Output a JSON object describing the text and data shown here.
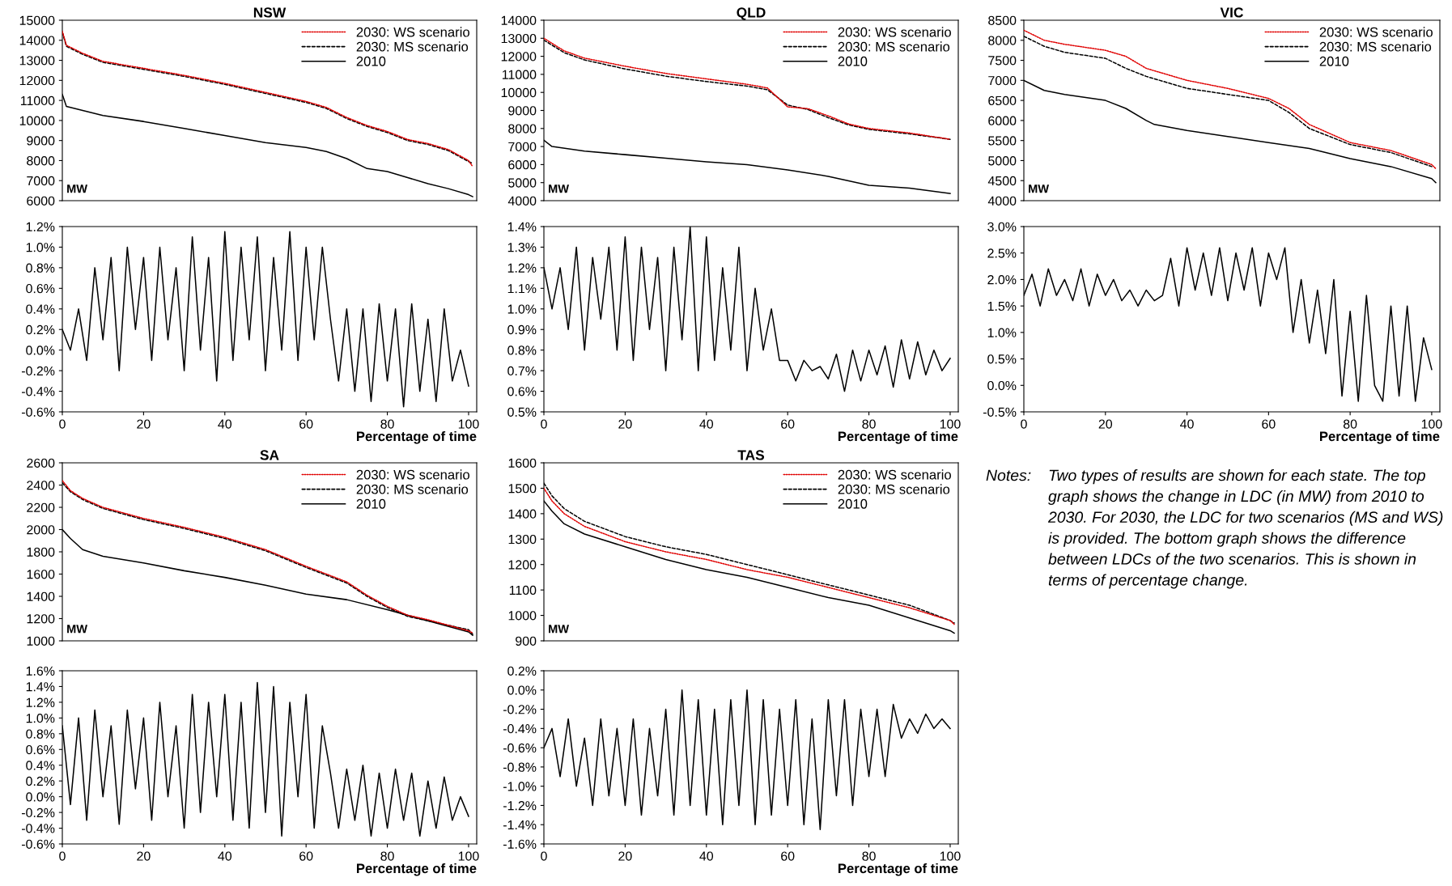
{
  "chart_data": [
    {
      "type": "line",
      "title": "NSW",
      "xlim": [
        0,
        102
      ],
      "ylim": [
        6000,
        15000
      ],
      "yticks": [
        6000,
        7000,
        8000,
        9000,
        10000,
        11000,
        12000,
        13000,
        14000,
        15000
      ],
      "tick_labels": "y",
      "legend": "top right",
      "annotations": [
        "MW"
      ],
      "series": [
        {
          "name": "2030: WS scenario",
          "color": "#e00000",
          "line_style": "dotted",
          "x": [
            0,
            1,
            5,
            10,
            20,
            30,
            40,
            50,
            60,
            65,
            70,
            75,
            80,
            85,
            90,
            95,
            100,
            101
          ],
          "values": [
            14450,
            13750,
            13350,
            12950,
            12600,
            12250,
            11850,
            11400,
            10950,
            10650,
            10150,
            9750,
            9450,
            9050,
            8850,
            8550,
            8000,
            7700
          ]
        },
        {
          "name": "2030: MS scenario",
          "color": "#000000",
          "line_style": "dashed",
          "x": [
            0,
            1,
            5,
            10,
            20,
            30,
            40,
            50,
            60,
            65,
            70,
            75,
            80,
            85,
            90,
            95,
            100,
            101
          ],
          "values": [
            14400,
            13700,
            13300,
            12900,
            12550,
            12200,
            11800,
            11350,
            10900,
            10600,
            10100,
            9700,
            9400,
            9000,
            8800,
            8500,
            7950,
            7850
          ]
        },
        {
          "name": "2010",
          "color": "#000000",
          "line_style": "solid",
          "x": [
            0,
            0.5,
            1,
            5,
            10,
            20,
            30,
            40,
            50,
            60,
            65,
            70,
            75,
            80,
            85,
            90,
            95,
            100,
            101
          ],
          "values": [
            11300,
            11000,
            10700,
            10500,
            10250,
            9950,
            9600,
            9250,
            8900,
            8650,
            8450,
            8100,
            7600,
            7450,
            7150,
            6850,
            6600,
            6300,
            6200
          ]
        }
      ]
    },
    {
      "type": "line",
      "xlabel": "Percentage of time",
      "xlim": [
        0,
        102
      ],
      "xticks": [
        0,
        20,
        40,
        60,
        80,
        100
      ],
      "ylim": [
        -0.6,
        1.2
      ],
      "yticks": [
        {
          "value": -0.6,
          "label": "-0.6%"
        },
        {
          "value": -0.4,
          "label": "-0.4%"
        },
        {
          "value": -0.2,
          "label": "-0.2%"
        },
        {
          "value": 0.0,
          "label": "0.0%"
        },
        {
          "value": 0.2,
          "label": "0.2%"
        },
        {
          "value": 0.4,
          "label": "0.4%"
        },
        {
          "value": 0.6,
          "label": "0.6%"
        },
        {
          "value": 0.8,
          "label": "0.8%"
        },
        {
          "value": 1.0,
          "label": "1.0%"
        },
        {
          "value": 1.2,
          "label": "1.2%"
        }
      ],
      "x": [
        0,
        2,
        4,
        6,
        8,
        10,
        12,
        14,
        16,
        18,
        20,
        22,
        24,
        26,
        28,
        30,
        32,
        34,
        36,
        38,
        40,
        42,
        44,
        46,
        48,
        50,
        52,
        54,
        56,
        58,
        60,
        62,
        64,
        66,
        68,
        70,
        72,
        74,
        76,
        78,
        80,
        82,
        84,
        86,
        88,
        90,
        92,
        94,
        96,
        98,
        100
      ],
      "series": [
        {
          "color": "#000000",
          "values": [
            0.2,
            0.0,
            0.4,
            -0.1,
            0.8,
            0.1,
            0.9,
            -0.2,
            1.0,
            0.2,
            0.9,
            -0.1,
            1.0,
            0.1,
            0.8,
            -0.2,
            1.1,
            0.0,
            0.9,
            -0.3,
            1.15,
            -0.1,
            1.0,
            0.1,
            1.1,
            -0.2,
            0.9,
            0.0,
            1.15,
            -0.1,
            1.0,
            0.1,
            1.0,
            0.3,
            -0.3,
            0.4,
            -0.4,
            0.4,
            -0.5,
            0.45,
            -0.3,
            0.4,
            -0.55,
            0.45,
            -0.4,
            0.3,
            -0.5,
            0.4,
            -0.3,
            0.0,
            -0.35
          ]
        }
      ]
    },
    {
      "type": "line",
      "title": "QLD",
      "xlim": [
        0,
        102
      ],
      "ylim": [
        4000,
        14000
      ],
      "yticks": [
        4000,
        5000,
        6000,
        7000,
        8000,
        9000,
        10000,
        11000,
        12000,
        13000,
        14000
      ],
      "tick_labels": "y",
      "legend": "top right",
      "annotations": [
        "MW"
      ],
      "series": [
        {
          "name": "2030: WS scenario",
          "color": "#e00000",
          "line_style": "dotted",
          "x": [
            0,
            5,
            10,
            20,
            30,
            40,
            50,
            55,
            60,
            65,
            70,
            75,
            80,
            90,
            100
          ],
          "values": [
            13000,
            12300,
            11900,
            11450,
            11050,
            10750,
            10450,
            10250,
            9200,
            9100,
            8700,
            8250,
            8000,
            7750,
            7400
          ]
        },
        {
          "name": "2030: MS scenario",
          "color": "#000000",
          "line_style": "dashed",
          "x": [
            0,
            5,
            10,
            20,
            30,
            40,
            50,
            55,
            60,
            65,
            70,
            75,
            80,
            90,
            100
          ],
          "values": [
            12900,
            12200,
            11800,
            11300,
            10900,
            10600,
            10350,
            10150,
            9300,
            9050,
            8600,
            8200,
            7950,
            7700,
            7400
          ]
        },
        {
          "name": "2010",
          "color": "#000000",
          "line_style": "solid",
          "x": [
            0,
            2,
            10,
            20,
            30,
            40,
            50,
            60,
            70,
            75,
            80,
            90,
            100
          ],
          "values": [
            7350,
            7000,
            6750,
            6550,
            6350,
            6150,
            6000,
            5700,
            5350,
            5100,
            4850,
            4700,
            4400
          ]
        }
      ]
    },
    {
      "type": "line",
      "xlabel": "Percentage of time",
      "xlim": [
        0,
        102
      ],
      "xticks": [
        0,
        20,
        40,
        60,
        80,
        100
      ],
      "ylim": [
        0.5,
        1.4
      ],
      "yticks": [
        {
          "value": 0.5,
          "label": "0.5%"
        },
        {
          "value": 0.6,
          "label": "0.6%"
        },
        {
          "value": 0.7,
          "label": "0.7%"
        },
        {
          "value": 0.8,
          "label": "0.8%"
        },
        {
          "value": 0.9,
          "label": "0.9%"
        },
        {
          "value": 1.0,
          "label": "1.0%"
        },
        {
          "value": 1.1,
          "label": "1.1%"
        },
        {
          "value": 1.2,
          "label": "1.2%"
        },
        {
          "value": 1.3,
          "label": "1.3%"
        },
        {
          "value": 1.4,
          "label": "1.4%"
        }
      ],
      "x": [
        0,
        2,
        4,
        6,
        8,
        10,
        12,
        14,
        16,
        18,
        20,
        22,
        24,
        26,
        28,
        30,
        32,
        34,
        36,
        38,
        40,
        42,
        44,
        46,
        48,
        50,
        52,
        54,
        56,
        58,
        60,
        62,
        64,
        66,
        68,
        70,
        72,
        74,
        76,
        78,
        80,
        82,
        84,
        86,
        88,
        90,
        92,
        94,
        96,
        98,
        100
      ],
      "series": [
        {
          "color": "#000000",
          "values": [
            1.2,
            1.0,
            1.2,
            0.9,
            1.3,
            0.8,
            1.25,
            0.95,
            1.3,
            0.8,
            1.35,
            0.75,
            1.3,
            0.9,
            1.25,
            0.7,
            1.3,
            0.85,
            1.4,
            0.7,
            1.35,
            0.75,
            1.2,
            0.8,
            1.3,
            0.7,
            1.1,
            0.8,
            1.0,
            0.75,
            0.75,
            0.65,
            0.75,
            0.7,
            0.72,
            0.66,
            0.78,
            0.6,
            0.8,
            0.65,
            0.8,
            0.68,
            0.82,
            0.62,
            0.85,
            0.66,
            0.84,
            0.68,
            0.8,
            0.7,
            0.76
          ]
        }
      ]
    },
    {
      "type": "line",
      "title": "VIC",
      "xlim": [
        0,
        102
      ],
      "ylim": [
        4000,
        8500
      ],
      "yticks": [
        4000,
        4500,
        5000,
        5500,
        6000,
        6500,
        7000,
        7500,
        8000,
        8500
      ],
      "tick_labels": "y",
      "legend": "top right",
      "annotations": [
        "MW"
      ],
      "series": [
        {
          "name": "2030: WS scenario",
          "color": "#e00000",
          "line_style": "dotted",
          "x": [
            0,
            5,
            10,
            20,
            25,
            30,
            40,
            50,
            60,
            65,
            70,
            80,
            90,
            100,
            101
          ],
          "values": [
            8250,
            8000,
            7900,
            7750,
            7600,
            7300,
            7000,
            6800,
            6550,
            6300,
            5900,
            5450,
            5250,
            4900,
            4800
          ]
        },
        {
          "name": "2030: MS scenario",
          "color": "#000000",
          "line_style": "dashed",
          "x": [
            0,
            5,
            10,
            20,
            25,
            30,
            40,
            50,
            60,
            65,
            70,
            80,
            90,
            100
          ],
          "values": [
            8100,
            7850,
            7700,
            7550,
            7300,
            7100,
            6800,
            6650,
            6500,
            6200,
            5800,
            5400,
            5200,
            4850
          ]
        },
        {
          "name": "2010",
          "color": "#000000",
          "line_style": "solid",
          "x": [
            0,
            5,
            10,
            20,
            25,
            30,
            32,
            40,
            50,
            60,
            70,
            80,
            90,
            100,
            101
          ],
          "values": [
            7000,
            6750,
            6650,
            6500,
            6300,
            6000,
            5900,
            5750,
            5600,
            5450,
            5300,
            5050,
            4850,
            4550,
            4450
          ]
        }
      ]
    },
    {
      "type": "line",
      "xlabel": "Percentage of time",
      "xlim": [
        0,
        102
      ],
      "xticks": [
        0,
        20,
        40,
        60,
        80,
        100
      ],
      "ylim": [
        -0.5,
        3.0
      ],
      "yticks": [
        {
          "value": -0.5,
          "label": "-0.5%"
        },
        {
          "value": 0.0,
          "label": "0.0%"
        },
        {
          "value": 0.5,
          "label": "0.5%"
        },
        {
          "value": 1.0,
          "label": "1.0%"
        },
        {
          "value": 1.5,
          "label": "1.5%"
        },
        {
          "value": 2.0,
          "label": "2.0%"
        },
        {
          "value": 2.5,
          "label": "2.5%"
        },
        {
          "value": 3.0,
          "label": "3.0%"
        }
      ],
      "x": [
        0,
        2,
        4,
        6,
        8,
        10,
        12,
        14,
        16,
        18,
        20,
        22,
        24,
        26,
        28,
        30,
        32,
        34,
        36,
        38,
        40,
        42,
        44,
        46,
        48,
        50,
        52,
        54,
        56,
        58,
        60,
        62,
        64,
        66,
        68,
        70,
        72,
        74,
        76,
        78,
        80,
        82,
        84,
        86,
        88,
        90,
        92,
        94,
        96,
        98,
        100
      ],
      "series": [
        {
          "color": "#000000",
          "values": [
            1.7,
            2.1,
            1.5,
            2.2,
            1.7,
            2.0,
            1.6,
            2.2,
            1.5,
            2.1,
            1.7,
            2.0,
            1.6,
            1.8,
            1.5,
            1.8,
            1.6,
            1.7,
            2.4,
            1.5,
            2.6,
            1.8,
            2.5,
            1.7,
            2.6,
            1.6,
            2.5,
            1.8,
            2.6,
            1.5,
            2.5,
            2.0,
            2.6,
            1.0,
            2.0,
            0.8,
            1.8,
            0.6,
            2.0,
            -0.2,
            1.4,
            -0.3,
            1.7,
            0.0,
            -0.3,
            1.5,
            -0.2,
            1.5,
            -0.3,
            0.9,
            0.3
          ]
        }
      ]
    },
    {
      "type": "line",
      "title": "SA",
      "xlim": [
        0,
        102
      ],
      "ylim": [
        1000,
        2600
      ],
      "yticks": [
        1000,
        1200,
        1400,
        1600,
        1800,
        2000,
        2200,
        2400,
        2600
      ],
      "tick_labels": "y",
      "legend": "top right",
      "annotations": [
        "MW"
      ],
      "series": [
        {
          "name": "2030: WS scenario",
          "color": "#e00000",
          "line_style": "dotted",
          "x": [
            0,
            2,
            5,
            10,
            20,
            30,
            40,
            50,
            60,
            70,
            75,
            80,
            85,
            90,
            100,
            101
          ],
          "values": [
            2440,
            2350,
            2280,
            2200,
            2100,
            2020,
            1930,
            1820,
            1670,
            1530,
            1410,
            1310,
            1230,
            1190,
            1090,
            1070
          ]
        },
        {
          "name": "2030: MS scenario",
          "color": "#000000",
          "line_style": "dashed",
          "x": [
            0,
            2,
            5,
            10,
            20,
            30,
            40,
            50,
            60,
            70,
            75,
            80,
            85,
            90,
            100,
            101
          ],
          "values": [
            2420,
            2340,
            2270,
            2190,
            2090,
            2010,
            1920,
            1810,
            1660,
            1520,
            1400,
            1300,
            1220,
            1180,
            1100,
            1060
          ]
        },
        {
          "name": "2010",
          "color": "#000000",
          "line_style": "solid",
          "x": [
            0,
            2,
            5,
            10,
            20,
            30,
            40,
            50,
            60,
            70,
            80,
            90,
            100,
            101
          ],
          "values": [
            2000,
            1920,
            1820,
            1760,
            1700,
            1630,
            1570,
            1500,
            1420,
            1370,
            1280,
            1180,
            1080,
            1050
          ]
        }
      ]
    },
    {
      "type": "line",
      "xlabel": "Percentage of time",
      "xlim": [
        0,
        102
      ],
      "xticks": [
        0,
        20,
        40,
        60,
        80,
        100
      ],
      "ylim": [
        -0.6,
        1.6
      ],
      "yticks": [
        {
          "value": -0.6,
          "label": "-0.6%"
        },
        {
          "value": -0.4,
          "label": "-0.4%"
        },
        {
          "value": -0.2,
          "label": "-0.2%"
        },
        {
          "value": 0.0,
          "label": "0.0%"
        },
        {
          "value": 0.2,
          "label": "0.2%"
        },
        {
          "value": 0.4,
          "label": "0.4%"
        },
        {
          "value": 0.6,
          "label": "0.6%"
        },
        {
          "value": 0.8,
          "label": "0.8%"
        },
        {
          "value": 1.0,
          "label": "1.0%"
        },
        {
          "value": 1.2,
          "label": "1.2%"
        },
        {
          "value": 1.4,
          "label": "1.4%"
        },
        {
          "value": 1.6,
          "label": "1.6%"
        }
      ],
      "x": [
        0,
        2,
        4,
        6,
        8,
        10,
        12,
        14,
        16,
        18,
        20,
        22,
        24,
        26,
        28,
        30,
        32,
        34,
        36,
        38,
        40,
        42,
        44,
        46,
        48,
        50,
        52,
        54,
        56,
        58,
        60,
        62,
        64,
        66,
        68,
        70,
        72,
        74,
        76,
        78,
        80,
        82,
        84,
        86,
        88,
        90,
        92,
        94,
        96,
        98,
        100
      ],
      "series": [
        {
          "color": "#000000",
          "values": [
            0.9,
            -0.1,
            1.0,
            -0.3,
            1.1,
            0.0,
            0.9,
            -0.35,
            1.1,
            0.1,
            1.0,
            -0.3,
            1.2,
            0.0,
            0.9,
            -0.4,
            1.3,
            -0.2,
            1.2,
            0.0,
            1.3,
            -0.3,
            1.2,
            -0.4,
            1.45,
            -0.2,
            1.4,
            -0.5,
            1.2,
            0.0,
            1.3,
            -0.4,
            0.9,
            0.3,
            -0.4,
            0.35,
            -0.3,
            0.4,
            -0.5,
            0.3,
            -0.4,
            0.35,
            -0.3,
            0.3,
            -0.5,
            0.2,
            -0.4,
            0.25,
            -0.3,
            0.0,
            -0.25
          ]
        }
      ]
    },
    {
      "type": "line",
      "title": "TAS",
      "xlim": [
        0,
        102
      ],
      "ylim": [
        900,
        1600
      ],
      "yticks": [
        900,
        1000,
        1100,
        1200,
        1300,
        1400,
        1500,
        1600
      ],
      "tick_labels": "y",
      "legend": "top right",
      "annotations": [
        "MW"
      ],
      "series": [
        {
          "name": "2030: WS scenario",
          "color": "#e00000",
          "line_style": "dotted",
          "x": [
            0,
            2,
            5,
            10,
            20,
            30,
            40,
            50,
            60,
            70,
            80,
            90,
            100,
            101
          ],
          "values": [
            1500,
            1450,
            1400,
            1350,
            1290,
            1250,
            1220,
            1180,
            1150,
            1110,
            1070,
            1030,
            980,
            965
          ]
        },
        {
          "name": "2030: MS scenario",
          "color": "#000000",
          "line_style": "dashed",
          "x": [
            0,
            2,
            5,
            10,
            20,
            30,
            40,
            50,
            60,
            70,
            80,
            90,
            100,
            101
          ],
          "values": [
            1520,
            1470,
            1420,
            1370,
            1310,
            1270,
            1240,
            1200,
            1160,
            1120,
            1080,
            1040,
            980,
            970
          ]
        },
        {
          "name": "2010",
          "color": "#000000",
          "line_style": "solid",
          "x": [
            0,
            2,
            5,
            10,
            20,
            30,
            40,
            50,
            60,
            70,
            80,
            90,
            100,
            101
          ],
          "values": [
            1450,
            1410,
            1360,
            1320,
            1270,
            1220,
            1180,
            1150,
            1110,
            1070,
            1040,
            990,
            940,
            930
          ]
        }
      ]
    },
    {
      "type": "line",
      "xlabel": "Percentage of time",
      "xlim": [
        0,
        102
      ],
      "xticks": [
        0,
        20,
        40,
        60,
        80,
        100
      ],
      "ylim": [
        -1.6,
        0.2
      ],
      "yticks": [
        {
          "value": -1.6,
          "label": "-1.6%"
        },
        {
          "value": -1.4,
          "label": "-1.4%"
        },
        {
          "value": -1.2,
          "label": "-1.2%"
        },
        {
          "value": -1.0,
          "label": "-1.0%"
        },
        {
          "value": -0.8,
          "label": "-0.8%"
        },
        {
          "value": -0.6,
          "label": "-0.6%"
        },
        {
          "value": -0.4,
          "label": "-0.4%"
        },
        {
          "value": -0.2,
          "label": "-0.2%"
        },
        {
          "value": 0.0,
          "label": "0.0%"
        },
        {
          "value": 0.2,
          "label": "0.2%"
        }
      ],
      "x": [
        0,
        2,
        4,
        6,
        8,
        10,
        12,
        14,
        16,
        18,
        20,
        22,
        24,
        26,
        28,
        30,
        32,
        34,
        36,
        38,
        40,
        42,
        44,
        46,
        48,
        50,
        52,
        54,
        56,
        58,
        60,
        62,
        64,
        66,
        68,
        70,
        72,
        74,
        76,
        78,
        80,
        82,
        84,
        86,
        88,
        90,
        92,
        94,
        96,
        98,
        100
      ],
      "series": [
        {
          "color": "#000000",
          "values": [
            -0.6,
            -0.4,
            -0.9,
            -0.3,
            -1.0,
            -0.5,
            -1.2,
            -0.3,
            -1.1,
            -0.4,
            -1.2,
            -0.3,
            -1.3,
            -0.4,
            -1.1,
            -0.2,
            -1.3,
            0.0,
            -1.2,
            -0.1,
            -1.3,
            -0.2,
            -1.4,
            -0.1,
            -1.2,
            0.0,
            -1.4,
            -0.1,
            -1.3,
            -0.2,
            -1.2,
            -0.1,
            -1.4,
            -0.3,
            -1.45,
            -0.1,
            -1.1,
            -0.1,
            -1.2,
            -0.2,
            -0.9,
            -0.2,
            -0.9,
            -0.15,
            -0.5,
            -0.3,
            -0.45,
            -0.25,
            -0.4,
            -0.3,
            -0.4
          ]
        }
      ]
    },
    {
      "type": "other",
      "annotations": [
        "Notes:",
        "Two types of results are shown for each state. The top graph shows the change in LDC (in MW) from 2010 to 2030. For 2030, the LDC for two scenarios (MS and WS) is provided. The bottom graph shows the difference between LDCs of the two scenarios. This is shown in terms of percentage change."
      ]
    }
  ]
}
